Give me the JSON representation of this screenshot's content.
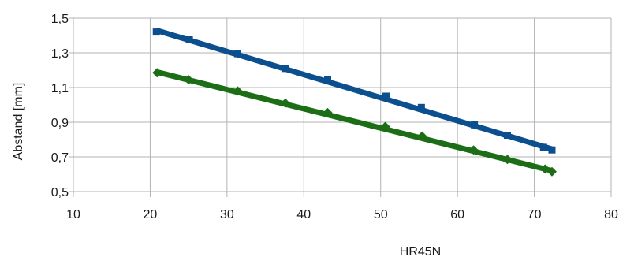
{
  "chart_data": {
    "type": "scatter",
    "xlabel": "HR45N",
    "ylabel": "Abstand [mm]",
    "xlim": [
      10,
      80
    ],
    "ylim": [
      0.5,
      1.5
    ],
    "x_ticks": [
      10,
      20,
      30,
      40,
      50,
      60,
      70,
      80
    ],
    "y_ticks": [
      0.5,
      0.7,
      0.9,
      1.1,
      1.3,
      1.5
    ],
    "x_tick_labels": [
      "10",
      "20",
      "30",
      "40",
      "50",
      "60",
      "70",
      "80"
    ],
    "y_tick_labels": [
      "0,5",
      "0,7",
      "0,9",
      "1,1",
      "1,3",
      "1,5"
    ],
    "grid": true,
    "legend": "none",
    "series": [
      {
        "color": "#0b4f8e",
        "marker": "square",
        "points": [
          [
            20.8,
            1.42
          ],
          [
            25.1,
            1.375
          ],
          [
            31.4,
            1.295
          ],
          [
            37.6,
            1.21
          ],
          [
            43.1,
            1.145
          ],
          [
            50.7,
            1.05
          ],
          [
            55.3,
            0.985
          ],
          [
            62.2,
            0.885
          ],
          [
            66.5,
            0.825
          ],
          [
            71.2,
            0.755
          ],
          [
            72.3,
            0.74
          ]
        ],
        "trendline": [
          [
            20.8,
            1.43
          ],
          [
            72.3,
            0.745
          ]
        ]
      },
      {
        "color": "#1c6e16",
        "marker": "diamond",
        "points": [
          [
            20.9,
            1.185
          ],
          [
            25.0,
            1.145
          ],
          [
            31.4,
            1.08
          ],
          [
            37.6,
            1.01
          ],
          [
            43.1,
            0.955
          ],
          [
            50.6,
            0.875
          ],
          [
            55.4,
            0.82
          ],
          [
            62.1,
            0.74
          ],
          [
            66.5,
            0.685
          ],
          [
            71.4,
            0.63
          ],
          [
            72.3,
            0.615
          ]
        ],
        "trendline": [
          [
            20.8,
            1.19
          ],
          [
            72.3,
            0.62
          ]
        ]
      }
    ]
  }
}
